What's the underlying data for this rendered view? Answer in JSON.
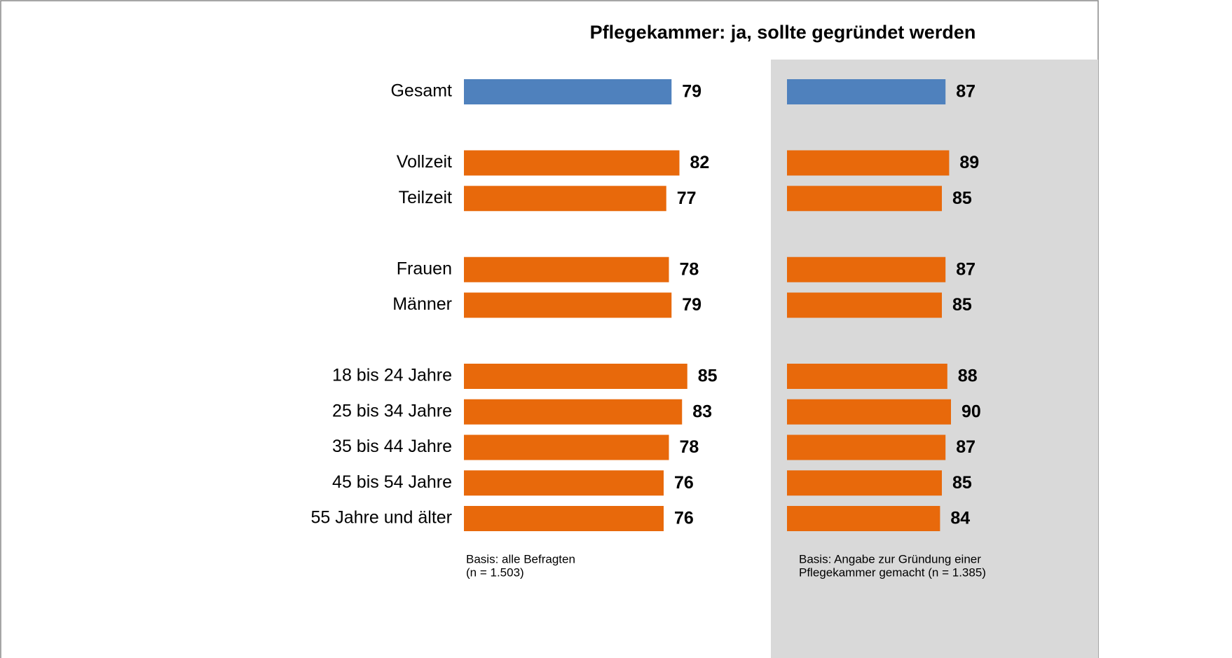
{
  "title": "Pflegekammer: ja, sollte gegründet werden",
  "chart_data": [
    {
      "type": "bar",
      "orientation": "horizontal",
      "categories": [
        "Gesamt",
        null,
        "Vollzeit",
        "Teilzeit",
        null,
        "Frauen",
        "Männer",
        null,
        "18 bis 24 Jahre",
        "25 bis 34 Jahre",
        "35 bis 44 Jahre",
        "45 bis 54 Jahre",
        "55 Jahre und älter"
      ],
      "values": [
        79,
        null,
        82,
        77,
        null,
        78,
        79,
        null,
        85,
        83,
        78,
        76,
        76
      ],
      "colors": [
        "#4f81bd",
        null,
        "#e8690b",
        "#e8690b",
        null,
        "#e8690b",
        "#e8690b",
        null,
        "#e8690b",
        "#e8690b",
        "#e8690b",
        "#e8690b",
        "#e8690b"
      ],
      "note": [
        "Basis: alle Befragten",
        "(n = 1.503)"
      ]
    },
    {
      "type": "bar",
      "orientation": "horizontal",
      "values": [
        87,
        null,
        89,
        85,
        null,
        87,
        85,
        null,
        88,
        90,
        87,
        85,
        84
      ],
      "colors": [
        "#4f81bd",
        null,
        "#e8690b",
        "#e8690b",
        null,
        "#e8690b",
        "#e8690b",
        null,
        "#e8690b",
        "#e8690b",
        "#e8690b",
        "#e8690b",
        "#e8690b"
      ],
      "note": [
        "Basis: Angabe zur Gründung einer",
        "Pflegekammer gemacht  (n = 1.385)"
      ]
    }
  ]
}
